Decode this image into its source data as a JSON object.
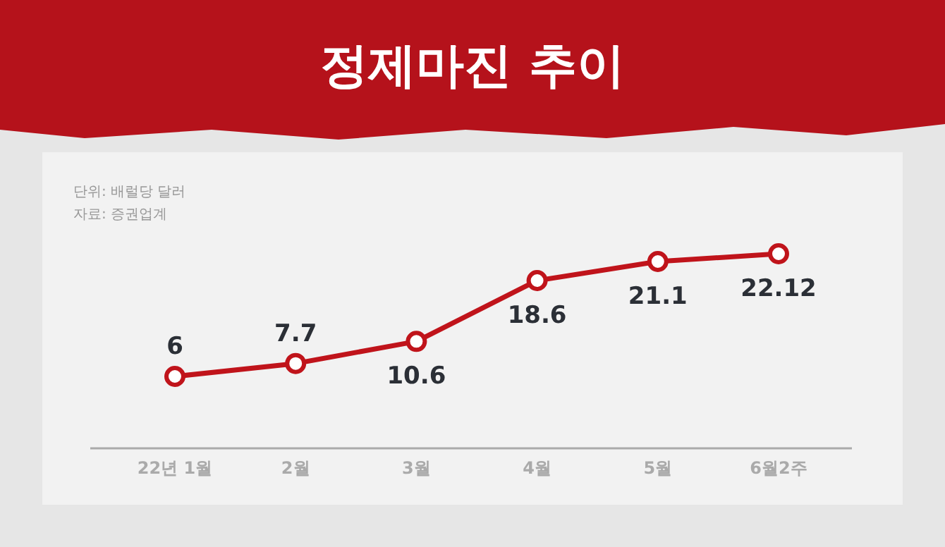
{
  "chart_data": {
    "type": "line",
    "title": "정제마진 추이",
    "annotations": [
      "단위: 배럴당 달러",
      "자료: 증권업계"
    ],
    "categories": [
      "22년 1월",
      "2월",
      "3월",
      "4월",
      "5월",
      "6월2주"
    ],
    "series": [
      {
        "color": "#c0141b",
        "values": [
          6,
          7.7,
          10.6,
          18.6,
          21.1,
          22.12
        ]
      }
    ],
    "data_labels": true,
    "marker": "circle",
    "line_style": "solid"
  }
}
